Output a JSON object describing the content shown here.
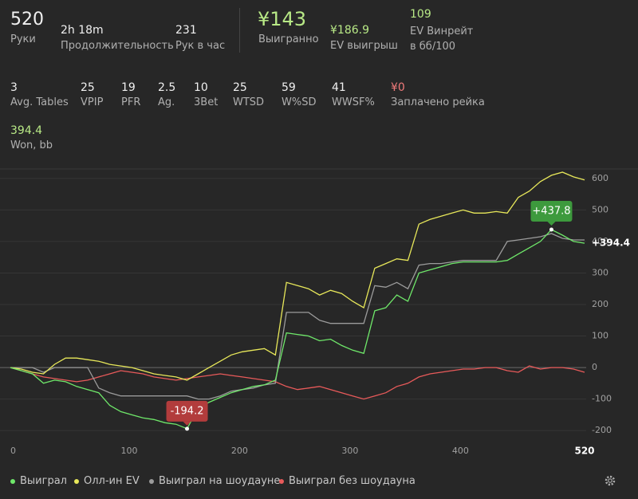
{
  "stats": {
    "row1": [
      {
        "value": "520",
        "label": "Руки"
      },
      {
        "value": "2h 18m",
        "label": "Продолжительность"
      },
      {
        "value": "231",
        "label": "Рук в час"
      },
      {
        "value": "¥143",
        "label": "Выигранно"
      },
      {
        "value": "¥186.9",
        "label": "EV выигрыш"
      },
      {
        "value": "109",
        "label": "EV Винрейт в бб/100"
      }
    ],
    "row2": [
      {
        "value": "3",
        "label": "Avg. Tables"
      },
      {
        "value": "25",
        "label": "VPIP"
      },
      {
        "value": "19",
        "label": "PFR"
      },
      {
        "value": "2.5",
        "label": "Ag."
      },
      {
        "value": "10",
        "label": "3Bet"
      },
      {
        "value": "25",
        "label": "WTSD"
      },
      {
        "value": "59",
        "label": "W%SD"
      },
      {
        "value": "41",
        "label": "WWSF%"
      },
      {
        "value": "¥0",
        "label": "Заплачено рейка"
      }
    ],
    "row3": [
      {
        "value": "394.4",
        "label": "Won, bb"
      }
    ]
  },
  "chart_data": {
    "type": "line",
    "x": [
      0,
      10,
      20,
      30,
      40,
      50,
      60,
      70,
      80,
      90,
      100,
      110,
      120,
      130,
      140,
      150,
      160,
      170,
      180,
      190,
      200,
      210,
      220,
      230,
      240,
      250,
      260,
      270,
      280,
      290,
      300,
      310,
      320,
      330,
      340,
      350,
      360,
      370,
      380,
      390,
      400,
      410,
      420,
      430,
      440,
      450,
      460,
      470,
      480,
      490,
      500,
      510,
      520
    ],
    "series": [
      {
        "name": "Выиграл",
        "color": "#6fe86a",
        "values": [
          0,
          -10,
          -20,
          -50,
          -40,
          -45,
          -60,
          -70,
          -80,
          -120,
          -140,
          -150,
          -160,
          -165,
          -175,
          -180,
          -194.2,
          -130,
          -110,
          -95,
          -80,
          -70,
          -60,
          -55,
          -40,
          110,
          105,
          100,
          85,
          90,
          70,
          55,
          45,
          180,
          190,
          230,
          210,
          300,
          310,
          320,
          330,
          335,
          335,
          335,
          335,
          340,
          360,
          380,
          400,
          437.8,
          420,
          400,
          394.4
        ]
      },
      {
        "name": "Олл-ин EV",
        "color": "#e8e85a",
        "values": [
          0,
          -5,
          -15,
          -20,
          10,
          30,
          30,
          25,
          20,
          10,
          5,
          0,
          -10,
          -20,
          -25,
          -30,
          -40,
          -20,
          0,
          20,
          40,
          50,
          55,
          60,
          40,
          270,
          260,
          250,
          230,
          245,
          235,
          210,
          190,
          315,
          330,
          345,
          340,
          455,
          470,
          480,
          490,
          500,
          490,
          490,
          495,
          490,
          540,
          560,
          590,
          610,
          620,
          605,
          595
        ]
      },
      {
        "name": "Выиграл на шоудауне",
        "color": "#9c9c9c",
        "values": [
          0,
          0,
          0,
          -15,
          0,
          0,
          0,
          0,
          -65,
          -80,
          -90,
          -90,
          -90,
          -90,
          -90,
          -90,
          -90,
          -100,
          -100,
          -90,
          -75,
          -70,
          -65,
          -55,
          -50,
          175,
          175,
          175,
          150,
          140,
          140,
          140,
          140,
          260,
          255,
          270,
          250,
          325,
          330,
          330,
          335,
          340,
          340,
          340,
          340,
          400,
          405,
          410,
          415,
          425,
          410,
          405,
          405
        ]
      },
      {
        "name": "Выиграл без шоудауна",
        "color": "#e85a5a",
        "values": [
          0,
          -10,
          -20,
          -30,
          -35,
          -40,
          -45,
          -40,
          -30,
          -20,
          -10,
          -15,
          -20,
          -30,
          -35,
          -40,
          -35,
          -30,
          -25,
          -20,
          -25,
          -30,
          -35,
          -40,
          -45,
          -60,
          -70,
          -65,
          -60,
          -70,
          -80,
          -90,
          -100,
          -90,
          -80,
          -60,
          -50,
          -30,
          -20,
          -15,
          -10,
          -5,
          -5,
          0,
          0,
          -10,
          -15,
          5,
          -5,
          0,
          0,
          -5,
          -15
        ]
      }
    ],
    "xlim": [
      0,
      520
    ],
    "ylim": [
      -230,
      630
    ],
    "xticks": [
      0,
      100,
      200,
      300,
      400,
      520
    ],
    "yticks": [
      -200,
      -100,
      0,
      100,
      200,
      300,
      400,
      500,
      600
    ],
    "grid": true,
    "annotations": [
      {
        "x": 490,
        "y": 437.8,
        "label": "+437.8",
        "color": "#3d9a3d"
      },
      {
        "x": 160,
        "y": -194.2,
        "label": "-194.2",
        "color": "#b23c3c"
      }
    ],
    "end_label": {
      "y": 394.4,
      "label": "+394.4"
    }
  }
}
